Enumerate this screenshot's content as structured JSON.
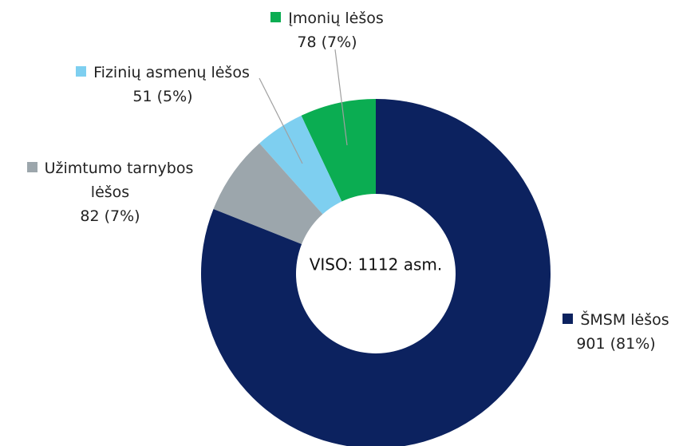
{
  "chart_data": {
    "type": "donut",
    "categories": [
      "ŠMSM lėšos",
      "Užimtumo tarnybos lėšos",
      "Fizinių asmenų lėšos",
      "Įmonių lėšos"
    ],
    "values": [
      901,
      82,
      51,
      78
    ],
    "value_labels": [
      "901 (81%)",
      "82 (7%)",
      "51 (5%)",
      "78 (7%)"
    ],
    "colors": [
      "#0c225f",
      "#9ca6ac",
      "#7ecff0",
      "#0bad52"
    ],
    "center_label": "VISO: 1112 asm."
  }
}
